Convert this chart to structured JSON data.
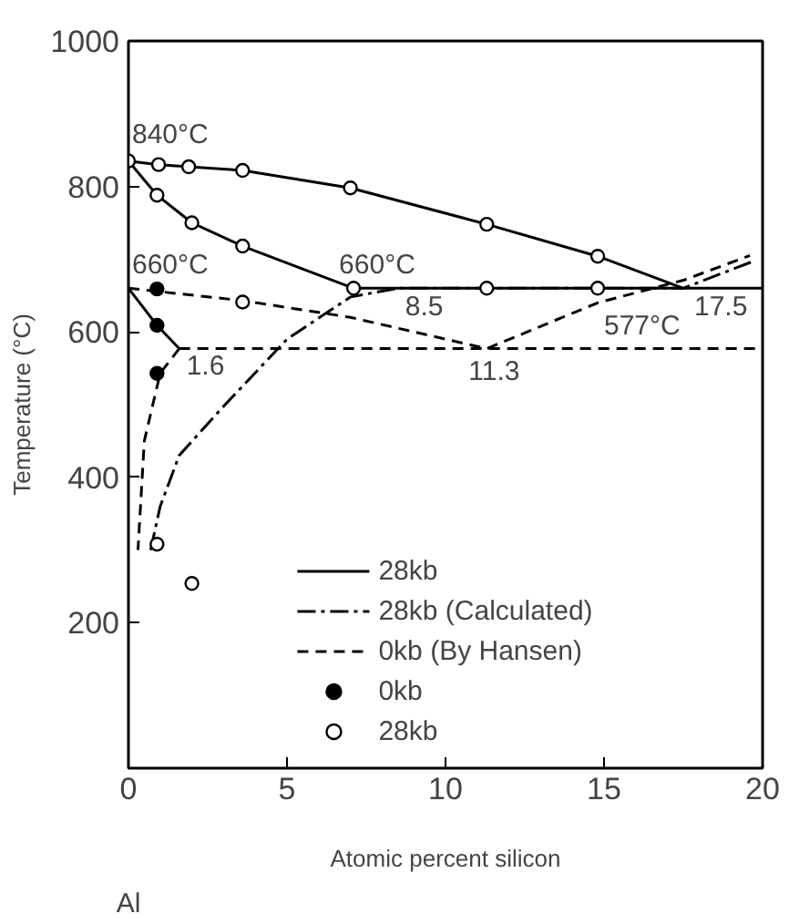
{
  "chart_data": {
    "type": "line",
    "xlabel": "Atomic percent silicon",
    "ylabel": "Temperature (°C)",
    "xlim": [
      0,
      20
    ],
    "ylim": [
      0,
      1000
    ],
    "xticks": [
      0,
      5,
      10,
      15,
      20
    ],
    "yticks": [
      200,
      400,
      600,
      800,
      1000
    ],
    "grid": false,
    "legend": "bottom",
    "series": [
      {
        "name": "28kb",
        "line_style": "solid",
        "color": "#000000",
        "x": [
          0,
          0.95,
          1.9,
          3.6,
          7.0,
          11.3,
          14.8,
          17.5
        ],
        "values": [
          835,
          830,
          827,
          822,
          798,
          748,
          704,
          660
        ]
      },
      {
        "line_style": "solid",
        "color": "#000000",
        "x": [
          0,
          0.9,
          2.0,
          3.6,
          7.1,
          20
        ],
        "values": [
          835,
          788,
          750,
          718,
          660,
          660
        ]
      },
      {
        "line_style": "solid",
        "color": "#000000",
        "x": [
          0,
          0.9,
          1.6
        ],
        "values": [
          660,
          609,
          577
        ]
      },
      {
        "name": "28kb (Calculated)",
        "line_style": "dashdot",
        "color": "#000000",
        "x": [
          0.7,
          1.0,
          1.6,
          2.9,
          5.0,
          7.0,
          8.5,
          17.5,
          19.7
        ],
        "values": [
          300,
          360,
          430,
          493,
          590,
          648,
          660,
          660,
          697
        ]
      },
      {
        "name": "0kb (By Hansen)",
        "line_style": "dashed",
        "color": "#000000",
        "x": [
          0,
          3.6,
          7.0,
          11.3,
          14.8,
          17.5,
          19.6
        ],
        "values": [
          660,
          643,
          620,
          577,
          640,
          671,
          705
        ]
      },
      {
        "line_style": "dashed",
        "color": "#000000",
        "x": [
          1.6,
          20
        ],
        "values": [
          577,
          577
        ]
      },
      {
        "line_style": "dashed",
        "color": "#000000",
        "x": [
          1.6,
          1.0,
          0.5,
          0.3
        ],
        "values": [
          577,
          543,
          450,
          300
        ]
      },
      {
        "name": "0kb",
        "type": "scatter",
        "marker": "circle",
        "color": "#000000",
        "x": [
          0.9,
          0.9,
          0.9
        ],
        "values": [
          659,
          609,
          543
        ]
      },
      {
        "name": "28kb",
        "type": "scatter",
        "marker": "circle",
        "color": "#ffffff",
        "x": [
          0,
          0.95,
          1.9,
          3.6,
          7.0,
          11.3,
          14.8,
          0.9,
          2.0,
          3.6,
          7.1,
          11.3,
          14.8,
          3.6,
          0.9,
          2.0
        ],
        "values": [
          835,
          830,
          827,
          822,
          798,
          748,
          704,
          788,
          750,
          718,
          660,
          660,
          660,
          641,
          308,
          254
        ]
      }
    ],
    "annotations": [
      {
        "text": "840°C",
        "x": 0,
        "y": 840
      },
      {
        "text": "660°C",
        "x": 0,
        "y": 660
      },
      {
        "text": "660°C",
        "x": 7.1,
        "y": 660
      },
      {
        "text": "8.5",
        "x": 8.5,
        "y": 660
      },
      {
        "text": "11.3",
        "x": 11.3,
        "y": 577
      },
      {
        "text": "577°C",
        "x": 15,
        "y": 577
      },
      {
        "text": "17.5",
        "x": 17.5,
        "y": 660
      },
      {
        "text": "1.6",
        "x": 1.6,
        "y": 577
      },
      "Al"
    ]
  }
}
